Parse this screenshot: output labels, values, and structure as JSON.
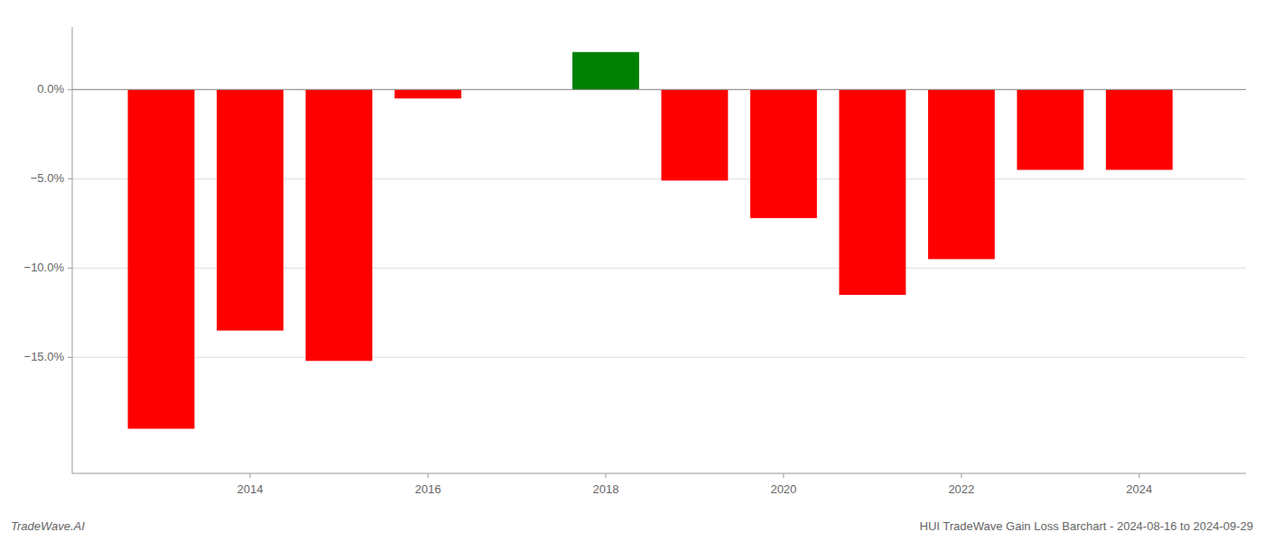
{
  "chart_data": {
    "type": "bar",
    "title": "HUI TradeWave Gain Loss Barchart - 2024-08-16 to 2024-09-29",
    "annotations": [
      "TradeWave.AI"
    ],
    "x": [
      2013,
      2014,
      2015,
      2016,
      2017,
      2018,
      2019,
      2020,
      2021,
      2022,
      2023,
      2024
    ],
    "values": [
      -19.0,
      -13.5,
      -15.2,
      -0.5,
      0.0,
      2.1,
      -5.1,
      -7.2,
      -11.5,
      -9.5,
      -4.5,
      -4.5
    ],
    "colors": [
      "#ff0000",
      "#ff0000",
      "#ff0000",
      "#ff0000",
      "#ff0000",
      "#008000",
      "#ff0000",
      "#ff0000",
      "#ff0000",
      "#ff0000",
      "#ff0000",
      "#ff0000"
    ],
    "xlim": [
      2012,
      2025.2
    ],
    "xticks": [
      2014,
      2016,
      2018,
      2020,
      2022,
      2024
    ],
    "ylim": [
      -21.5,
      3.5
    ],
    "yticks": [
      {
        "value": 0.0,
        "label": "0.0%"
      },
      {
        "value": -5.0,
        "label": "−5.0%"
      },
      {
        "value": -10.0,
        "label": "−10.0%"
      },
      {
        "value": -15.0,
        "label": "−15.0%"
      }
    ],
    "grid": true
  }
}
